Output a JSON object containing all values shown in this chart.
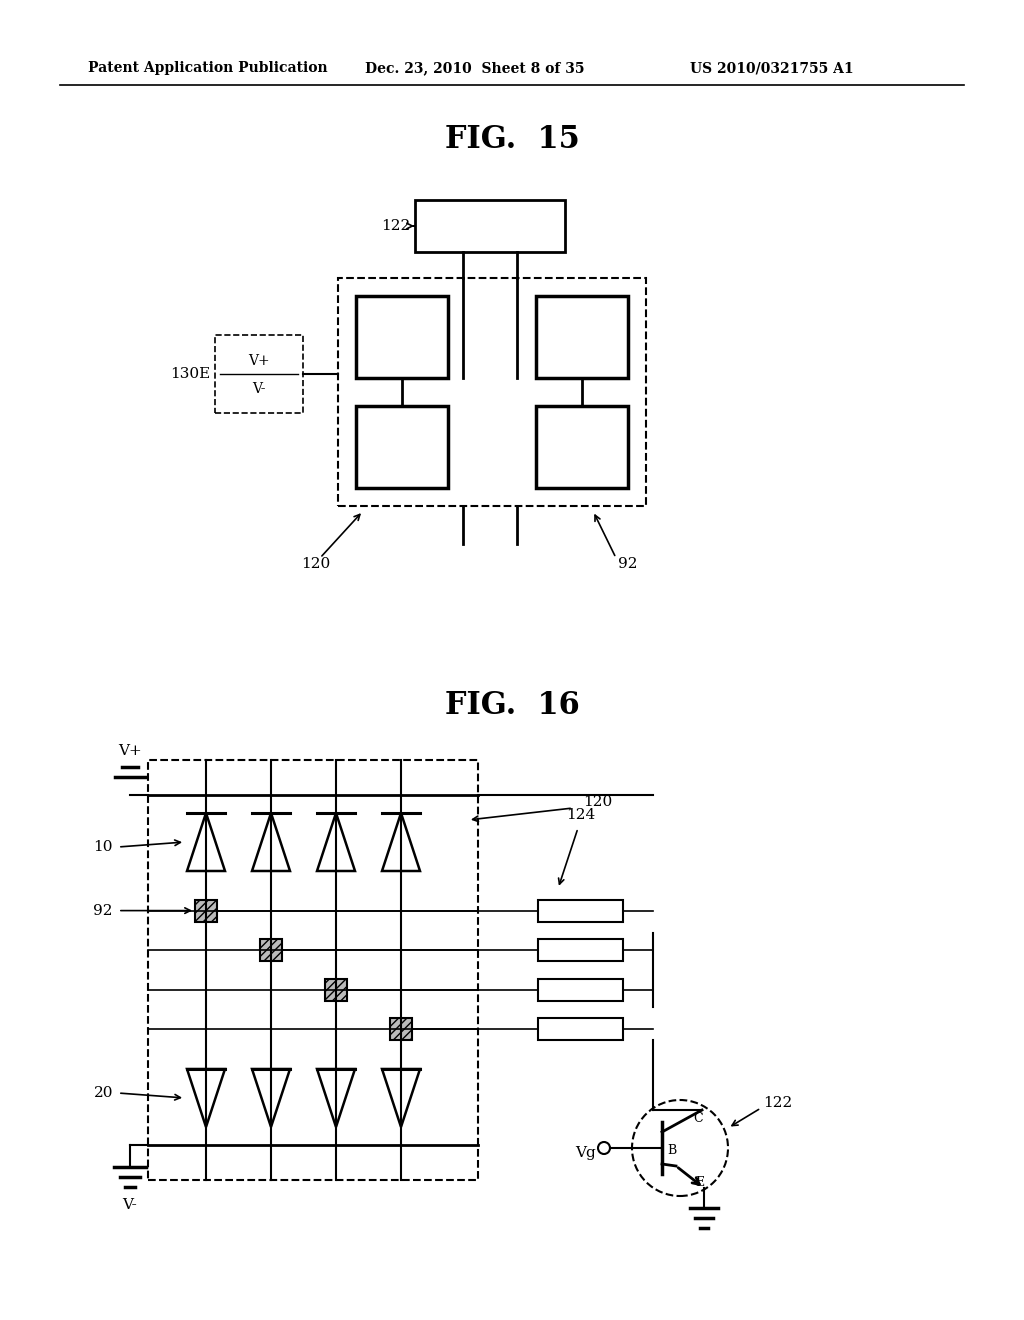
{
  "bg_color": "#ffffff",
  "line_color": "#000000",
  "header_left": "Patent Application Publication",
  "header_mid": "Dec. 23, 2010  Sheet 8 of 35",
  "header_right": "US 2010/0321755 A1",
  "fig15_title": "FIG.  15",
  "fig16_title": "FIG.  16"
}
